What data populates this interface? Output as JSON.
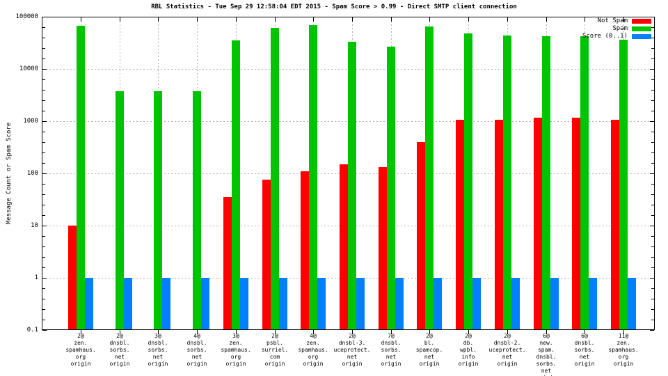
{
  "chart_data": {
    "type": "bar",
    "title": "RBL Statistics - Tue Sep 29 12:58:04 EDT 2015 - Spam Score > 0.99 - Direct SMTP client connection",
    "ylabel": "Message Count or Spam Score",
    "yscale": "log",
    "ylim": [
      0.1,
      100000
    ],
    "grid": true,
    "legend_position": "top-right-inside",
    "ytick_labels": [
      "100000",
      "10000",
      "1000",
      "100",
      "10",
      "1",
      "0.1"
    ],
    "ytick_values": [
      100000,
      10000,
      1000,
      100,
      10,
      1,
      0.1
    ],
    "categories": [
      [
        "2@",
        "zen.",
        "spamhaus.",
        "org",
        "origin"
      ],
      [
        "2@",
        "dnsbl.",
        "sorbs.",
        "net",
        "origin"
      ],
      [
        "3@",
        "dnsbl.",
        "sorbs.",
        "net",
        "origin"
      ],
      [
        "4@",
        "dnsbl.",
        "sorbs.",
        "net",
        "origin"
      ],
      [
        "3@",
        "zen.",
        "spamhaus.",
        "org",
        "origin"
      ],
      [
        "2@",
        "psbl.",
        "surriel.",
        "com",
        "origin"
      ],
      [
        "4@",
        "zen.",
        "spamhaus.",
        "org",
        "origin"
      ],
      [
        "2@",
        "dnsbl-3.",
        "uceprotect.",
        "net",
        "origin"
      ],
      [
        "7@",
        "dnsbl.",
        "sorbs.",
        "net",
        "origin"
      ],
      [
        "2@",
        "bl.",
        "spamcop.",
        "net",
        "origin"
      ],
      [
        "2@",
        "db.",
        "wpbl.",
        "info",
        "origin"
      ],
      [
        "2@",
        "dnsbl-2.",
        "uceprotect.",
        "net",
        "origin"
      ],
      [
        "6@",
        "new.",
        "spam.",
        "dnsbl.",
        "sorbs.",
        "net",
        "origin"
      ],
      [
        "6@",
        "dnsbl.",
        "sorbs.",
        "net",
        "origin"
      ],
      [
        "11@",
        "zen.",
        "spamhaus.",
        "org",
        "origin"
      ]
    ],
    "series": [
      {
        "name": "Not Spam",
        "color": "#ff0000",
        "values": [
          10,
          0,
          0,
          0,
          35,
          75,
          110,
          150,
          130,
          400,
          1050,
          1050,
          1150,
          1150,
          1050
        ]
      },
      {
        "name": "Spam",
        "color": "#00c400",
        "values": [
          67000,
          3800,
          3800,
          3800,
          35000,
          61000,
          69000,
          33000,
          27000,
          65000,
          48000,
          44000,
          42000,
          42000,
          36000
        ]
      },
      {
        "name": "Score (0..1)",
        "color": "#0080ff",
        "values": [
          1,
          1,
          1,
          1,
          1,
          1,
          1,
          1,
          1,
          1,
          1,
          1,
          1,
          1,
          1
        ]
      }
    ],
    "colors": {
      "grid": "#b0b0b0",
      "axis": "#000000",
      "background": "#ffffff"
    }
  }
}
